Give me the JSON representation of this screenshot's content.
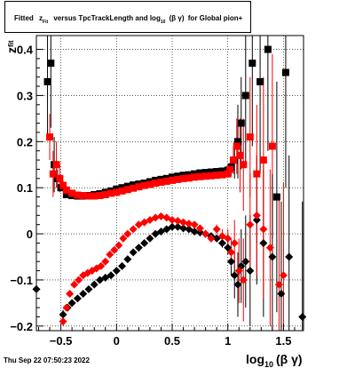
{
  "chart_data": {
    "type": "scatter",
    "title": {
      "prefix": "Fitted",
      "z": "z",
      "z_sub": "Fit",
      "mid": "versus TpcTrackLength and log",
      "log_sub": "10",
      "bg": "(β γ)",
      "suffix": "for Global pion+"
    },
    "ylabel": {
      "main": "z",
      "sub": "fit"
    },
    "xlabel": {
      "main": "log",
      "sub": "10",
      "rest": "(β γ)"
    },
    "xlim": [
      -0.72,
      1.68
    ],
    "ylim": [
      -0.21,
      0.43
    ],
    "grid": true,
    "xticks": [
      -0.5,
      0,
      0.5,
      1,
      1.5
    ],
    "xtick_labels": [
      "−0.5",
      "0",
      "0.5",
      "1",
      "1.5"
    ],
    "yticks": [
      -0.2,
      -0.1,
      0,
      0.1,
      0.2,
      0.3,
      0.4
    ],
    "ytick_labels": [
      "−0.2",
      "−0.1",
      "0",
      "0.1",
      "0.2",
      "0.3",
      "0.4"
    ],
    "series": [
      {
        "color": "#000000",
        "marker": "square",
        "colorName": "black",
        "x": [
          -0.62,
          -0.59,
          -0.56,
          -0.53,
          -0.5,
          -0.45,
          -0.4,
          -0.35,
          -0.3,
          -0.25,
          -0.2,
          -0.15,
          -0.1,
          -0.05,
          0,
          0.05,
          0.1,
          0.15,
          0.2,
          0.25,
          0.3,
          0.35,
          0.4,
          0.45,
          0.5,
          0.55,
          0.6,
          0.65,
          0.7,
          0.75,
          0.8,
          0.85,
          0.9,
          0.95,
          1,
          1.03,
          1.06,
          1.09,
          1.12,
          1.16,
          1.22,
          1.29,
          1.36,
          1.44,
          1.52
        ],
        "y": [
          0.33,
          0.37,
          0.15,
          0.12,
          0.1,
          0.085,
          0.083,
          0.082,
          0.082,
          0.083,
          0.085,
          0.087,
          0.09,
          0.093,
          0.097,
          0.1,
          0.103,
          0.106,
          0.108,
          0.11,
          0.113,
          0.116,
          0.118,
          0.12,
          0.123,
          0.125,
          0.127,
          0.128,
          0.13,
          0.132,
          0.133,
          0.134,
          0.135,
          0.136,
          0.138,
          0.145,
          0.16,
          0.2,
          0.24,
          0.3,
          0.37,
          0.33,
          0.4,
          0.08,
          0.35
        ],
        "err": [
          0.12,
          0.14,
          0.06,
          0.02,
          0.008,
          0.005,
          0.004,
          0.004,
          0.004,
          0.004,
          0.004,
          0.004,
          0.004,
          0.004,
          0.004,
          0.004,
          0.004,
          0.004,
          0.004,
          0.004,
          0.004,
          0.004,
          0.004,
          0.004,
          0.004,
          0.004,
          0.004,
          0.004,
          0.005,
          0.005,
          0.005,
          0.006,
          0.007,
          0.008,
          0.01,
          0.02,
          0.04,
          0.08,
          0.1,
          0.15,
          0.18,
          0.2,
          0.22,
          0.25,
          0.25
        ]
      },
      {
        "color": "#ff0000",
        "marker": "square",
        "colorName": "red",
        "x": [
          -0.6,
          -0.57,
          -0.54,
          -0.51,
          -0.48,
          -0.45,
          -0.4,
          -0.35,
          -0.3,
          -0.25,
          -0.2,
          -0.15,
          -0.1,
          -0.05,
          0,
          0.05,
          0.1,
          0.15,
          0.2,
          0.25,
          0.3,
          0.35,
          0.4,
          0.45,
          0.5,
          0.55,
          0.6,
          0.65,
          0.7,
          0.75,
          0.8,
          0.85,
          0.9,
          0.95,
          1,
          1.02,
          1.05,
          1.08,
          1.11,
          1.14,
          1.2,
          1.26,
          1.32,
          1.4
        ],
        "y": [
          0.21,
          0.13,
          0.15,
          0.12,
          0.105,
          0.095,
          0.088,
          0.084,
          0.083,
          0.082,
          0.082,
          0.083,
          0.085,
          0.088,
          0.09,
          0.093,
          0.096,
          0.099,
          0.102,
          0.105,
          0.107,
          0.11,
          0.112,
          0.114,
          0.116,
          0.118,
          0.12,
          0.121,
          0.123,
          0.124,
          0.125,
          0.126,
          0.127,
          0.128,
          0.13,
          0.14,
          0.16,
          0.19,
          0.17,
          0.15,
          0.21,
          0.13,
          0.16,
          0.19
        ],
        "err": [
          0.05,
          0.05,
          0.05,
          0.03,
          0.01,
          0.006,
          0.004,
          0.004,
          0.004,
          0.004,
          0.004,
          0.004,
          0.004,
          0.004,
          0.004,
          0.004,
          0.004,
          0.004,
          0.004,
          0.004,
          0.004,
          0.004,
          0.004,
          0.004,
          0.004,
          0.004,
          0.004,
          0.004,
          0.005,
          0.005,
          0.005,
          0.006,
          0.006,
          0.007,
          0.008,
          0.015,
          0.03,
          0.06,
          0.08,
          0.1,
          0.13,
          0.15,
          0.18,
          0.2
        ]
      },
      {
        "color": "#000000",
        "marker": "diamond",
        "colorName": "black",
        "x": [
          -0.72,
          -0.48,
          -0.44,
          -0.4,
          -0.35,
          -0.3,
          -0.25,
          -0.2,
          -0.15,
          -0.1,
          -0.05,
          0,
          0.05,
          0.1,
          0.15,
          0.2,
          0.25,
          0.3,
          0.35,
          0.4,
          0.45,
          0.5,
          0.55,
          0.6,
          0.65,
          0.7,
          0.75,
          0.8,
          0.85,
          0.9,
          0.95,
          1,
          1.03,
          1.06,
          1.09,
          1.12,
          1.16,
          1.2,
          1.26,
          1.32,
          1.4,
          1.48,
          1.55,
          1.67
        ],
        "y": [
          -0.12,
          -0.175,
          -0.16,
          -0.15,
          -0.14,
          -0.13,
          -0.12,
          -0.11,
          -0.1,
          -0.095,
          -0.09,
          -0.08,
          -0.07,
          -0.055,
          -0.04,
          -0.03,
          -0.02,
          -0.01,
          0,
          0.005,
          0.01,
          0.015,
          0.015,
          0.012,
          0.01,
          0.005,
          0.003,
          0,
          -0.005,
          -0.01,
          -0.02,
          -0.03,
          -0.06,
          -0.09,
          -0.11,
          -0.07,
          -0.06,
          -0.08,
          0.03,
          -0.02,
          -0.05,
          -0.13,
          -0.05,
          -0.18
        ],
        "err": [
          0,
          0.01,
          0.006,
          0.005,
          0.004,
          0.004,
          0.004,
          0.004,
          0.004,
          0.004,
          0.004,
          0.004,
          0.004,
          0.004,
          0.004,
          0.004,
          0.004,
          0.004,
          0.004,
          0.004,
          0.004,
          0.004,
          0.004,
          0.004,
          0.004,
          0.004,
          0.005,
          0.006,
          0.007,
          0.008,
          0.01,
          0.015,
          0.03,
          0.05,
          0.07,
          0.08,
          0.1,
          0.12,
          0.14,
          0.16,
          0.18,
          0.2,
          0.22,
          0.25
        ]
      },
      {
        "color": "#ff0000",
        "marker": "diamond",
        "colorName": "red",
        "x": [
          -0.48,
          -0.45,
          -0.42,
          -0.38,
          -0.34,
          -0.3,
          -0.26,
          -0.22,
          -0.18,
          -0.14,
          -0.1,
          -0.06,
          -0.02,
          0.02,
          0.06,
          0.1,
          0.15,
          0.2,
          0.25,
          0.3,
          0.35,
          0.4,
          0.45,
          0.5,
          0.55,
          0.6,
          0.65,
          0.7,
          0.75,
          0.8,
          0.85,
          0.9,
          0.95,
          1,
          1.03,
          1.06,
          1.1,
          1.14,
          1.2,
          1.26,
          1.32,
          1.38,
          1.46,
          1.5
        ],
        "y": [
          -0.19,
          -0.16,
          -0.13,
          -0.11,
          -0.1,
          -0.09,
          -0.085,
          -0.08,
          -0.075,
          -0.07,
          -0.06,
          -0.045,
          -0.035,
          -0.025,
          -0.01,
          0,
          0.01,
          0.02,
          0.025,
          0.03,
          0.035,
          0.038,
          0.035,
          0.03,
          0.028,
          0.025,
          0.022,
          0.02,
          0.012,
          0,
          -0.01,
          0.01,
          -0.005,
          -0.01,
          -0.04,
          -0.02,
          -0.08,
          -0.1,
          0.02,
          0.04,
          0.01,
          -0.03,
          -0.11,
          -0.09
        ],
        "err": [
          0.01,
          0.006,
          0.005,
          0.004,
          0.004,
          0.004,
          0.004,
          0.004,
          0.004,
          0.004,
          0.004,
          0.004,
          0.004,
          0.004,
          0.004,
          0.004,
          0.004,
          0.004,
          0.004,
          0.004,
          0.004,
          0.004,
          0.004,
          0.004,
          0.004,
          0.004,
          0.005,
          0.005,
          0.006,
          0.007,
          0.008,
          0.01,
          0.015,
          0.02,
          0.03,
          0.05,
          0.07,
          0.09,
          0.11,
          0.13,
          0.15,
          0.17,
          0.19,
          0.2
        ]
      }
    ]
  },
  "footer": {
    "timestamp": "Thu Sep 22 07:50:23 2022"
  }
}
